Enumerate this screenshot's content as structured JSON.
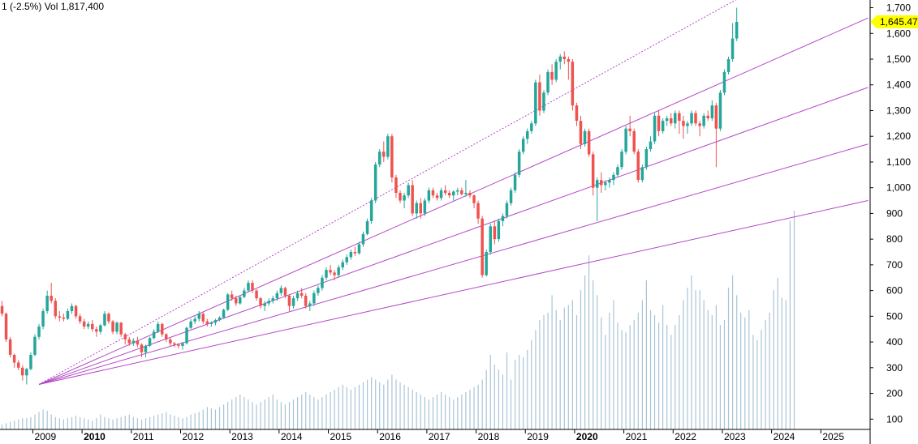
{
  "header": {
    "change_text": "1 (-2.5%)",
    "volume_text": "Vol 1,817,400"
  },
  "colors": {
    "up": "#26a69a",
    "down": "#ef5350",
    "volume": "#a9c4d6",
    "fan": "#b347c6",
    "last_price_bg": "#ffff00",
    "axis": "#000000"
  },
  "chart_data": {
    "type": "candlestick",
    "title": "",
    "xlabel": "",
    "ylabel": "",
    "ylim": [
      60,
      1730
    ],
    "y_ticks": [
      100,
      200,
      300,
      400,
      500,
      600,
      700,
      800,
      900,
      1000,
      1100,
      1200,
      1300,
      1400,
      1500,
      1600,
      1700
    ],
    "y_tick_labels": [
      "100",
      "200",
      "300",
      "400",
      "500",
      "600",
      "700",
      "800",
      "900",
      "1,000",
      "1,100",
      "1,200",
      "1,300",
      "1,400",
      "1,500",
      "1,600",
      "1,700"
    ],
    "x_range": [
      "2008-05",
      "2025-12"
    ],
    "years": [
      {
        "label": "2009",
        "bold": false
      },
      {
        "label": "2010",
        "bold": true
      },
      {
        "label": "2011",
        "bold": false
      },
      {
        "label": "2012",
        "bold": false
      },
      {
        "label": "2013",
        "bold": false
      },
      {
        "label": "2014",
        "bold": false
      },
      {
        "label": "2015",
        "bold": false
      },
      {
        "label": "2016",
        "bold": false
      },
      {
        "label": "2017",
        "bold": false
      },
      {
        "label": "2018",
        "bold": false
      },
      {
        "label": "2019",
        "bold": false
      },
      {
        "label": "2020",
        "bold": true
      },
      {
        "label": "2021",
        "bold": false
      },
      {
        "label": "2022",
        "bold": false
      },
      {
        "label": "2023",
        "bold": false
      },
      {
        "label": "2024",
        "bold": false
      },
      {
        "label": "2025",
        "bold": false
      }
    ],
    "last_price": 1645.47,
    "last_price_label": "1,645.47",
    "start_month": "2008-05",
    "candles": [
      [
        540,
        560,
        500,
        510
      ],
      [
        510,
        515,
        400,
        410
      ],
      [
        410,
        420,
        340,
        350
      ],
      [
        350,
        355,
        300,
        320
      ],
      [
        320,
        330,
        290,
        300
      ],
      [
        300,
        310,
        250,
        270
      ],
      [
        270,
        300,
        235,
        295
      ],
      [
        295,
        360,
        290,
        350
      ],
      [
        350,
        430,
        345,
        420
      ],
      [
        420,
        470,
        410,
        460
      ],
      [
        460,
        530,
        450,
        520
      ],
      [
        520,
        600,
        510,
        580
      ],
      [
        580,
        630,
        550,
        560
      ],
      [
        560,
        570,
        490,
        500
      ],
      [
        500,
        520,
        480,
        495
      ],
      [
        495,
        510,
        480,
        490
      ],
      [
        490,
        530,
        485,
        520
      ],
      [
        520,
        550,
        510,
        540
      ],
      [
        540,
        545,
        490,
        500
      ],
      [
        500,
        510,
        470,
        480
      ],
      [
        480,
        490,
        450,
        460
      ],
      [
        460,
        480,
        450,
        470
      ],
      [
        470,
        485,
        440,
        450
      ],
      [
        450,
        460,
        420,
        440
      ],
      [
        440,
        470,
        430,
        465
      ],
      [
        465,
        520,
        460,
        510
      ],
      [
        510,
        515,
        470,
        480
      ],
      [
        480,
        485,
        430,
        440
      ],
      [
        440,
        480,
        430,
        475
      ],
      [
        475,
        478,
        420,
        430
      ],
      [
        430,
        435,
        390,
        410
      ],
      [
        410,
        420,
        385,
        395
      ],
      [
        395,
        415,
        385,
        405
      ],
      [
        405,
        420,
        380,
        390
      ],
      [
        390,
        395,
        340,
        360
      ],
      [
        360,
        390,
        340,
        385
      ],
      [
        385,
        420,
        380,
        415
      ],
      [
        415,
        450,
        410,
        440
      ],
      [
        440,
        480,
        435,
        470
      ],
      [
        470,
        475,
        420,
        430
      ],
      [
        430,
        435,
        400,
        410
      ],
      [
        410,
        415,
        385,
        395
      ],
      [
        395,
        400,
        380,
        390
      ],
      [
        390,
        395,
        375,
        385
      ],
      [
        385,
        400,
        370,
        395
      ],
      [
        395,
        460,
        390,
        455
      ],
      [
        455,
        490,
        450,
        480
      ],
      [
        480,
        500,
        470,
        490
      ],
      [
        490,
        520,
        480,
        510
      ],
      [
        510,
        515,
        470,
        480
      ],
      [
        480,
        490,
        460,
        470
      ],
      [
        470,
        480,
        460,
        475
      ],
      [
        475,
        490,
        465,
        485
      ],
      [
        485,
        500,
        480,
        495
      ],
      [
        495,
        530,
        490,
        525
      ],
      [
        525,
        590,
        520,
        585
      ],
      [
        585,
        600,
        560,
        570
      ],
      [
        570,
        580,
        540,
        550
      ],
      [
        550,
        580,
        545,
        575
      ],
      [
        575,
        610,
        570,
        600
      ],
      [
        600,
        640,
        595,
        630
      ],
      [
        630,
        640,
        590,
        600
      ],
      [
        600,
        605,
        560,
        570
      ],
      [
        570,
        575,
        530,
        540
      ],
      [
        540,
        560,
        520,
        550
      ],
      [
        550,
        570,
        540,
        560
      ],
      [
        560,
        580,
        550,
        570
      ],
      [
        570,
        600,
        560,
        590
      ],
      [
        590,
        620,
        580,
        610
      ],
      [
        610,
        615,
        570,
        580
      ],
      [
        580,
        585,
        520,
        540
      ],
      [
        540,
        580,
        530,
        570
      ],
      [
        570,
        600,
        560,
        590
      ],
      [
        590,
        610,
        570,
        580
      ],
      [
        580,
        590,
        530,
        540
      ],
      [
        540,
        560,
        520,
        550
      ],
      [
        550,
        600,
        540,
        590
      ],
      [
        590,
        620,
        580,
        610
      ],
      [
        610,
        660,
        600,
        650
      ],
      [
        650,
        690,
        640,
        680
      ],
      [
        680,
        700,
        660,
        670
      ],
      [
        670,
        680,
        640,
        660
      ],
      [
        660,
        700,
        650,
        690
      ],
      [
        690,
        720,
        680,
        710
      ],
      [
        710,
        740,
        700,
        730
      ],
      [
        730,
        760,
        720,
        750
      ],
      [
        750,
        770,
        735,
        745
      ],
      [
        745,
        790,
        740,
        780
      ],
      [
        780,
        830,
        770,
        820
      ],
      [
        820,
        880,
        815,
        870
      ],
      [
        870,
        960,
        860,
        950
      ],
      [
        950,
        1100,
        940,
        1090
      ],
      [
        1090,
        1150,
        1080,
        1140
      ],
      [
        1140,
        1180,
        1100,
        1120
      ],
      [
        1120,
        1210,
        1110,
        1200
      ],
      [
        1200,
        1210,
        1020,
        1040
      ],
      [
        1040,
        1050,
        960,
        980
      ],
      [
        980,
        990,
        940,
        950
      ],
      [
        950,
        980,
        920,
        970
      ],
      [
        970,
        1020,
        960,
        1010
      ],
      [
        1010,
        1030,
        890,
        900
      ],
      [
        900,
        950,
        880,
        940
      ],
      [
        940,
        960,
        880,
        900
      ],
      [
        900,
        960,
        890,
        950
      ],
      [
        950,
        1000,
        940,
        990
      ],
      [
        990,
        1000,
        960,
        970
      ],
      [
        970,
        980,
        950,
        960
      ],
      [
        960,
        1000,
        950,
        990
      ],
      [
        990,
        1010,
        970,
        980
      ],
      [
        980,
        990,
        960,
        970
      ],
      [
        970,
        990,
        950,
        985
      ],
      [
        985,
        1000,
        970,
        990
      ],
      [
        990,
        1000,
        970,
        975
      ],
      [
        975,
        1030,
        965,
        980
      ],
      [
        980,
        990,
        960,
        970
      ],
      [
        970,
        975,
        920,
        940
      ],
      [
        940,
        950,
        860,
        880
      ],
      [
        880,
        890,
        650,
        660
      ],
      [
        660,
        760,
        655,
        750
      ],
      [
        750,
        860,
        740,
        850
      ],
      [
        850,
        870,
        780,
        800
      ],
      [
        800,
        880,
        790,
        870
      ],
      [
        870,
        900,
        850,
        890
      ],
      [
        890,
        950,
        880,
        940
      ],
      [
        940,
        1000,
        930,
        990
      ],
      [
        990,
        1060,
        980,
        1050
      ],
      [
        1050,
        1150,
        1040,
        1140
      ],
      [
        1140,
        1200,
        1130,
        1190
      ],
      [
        1190,
        1230,
        1170,
        1220
      ],
      [
        1220,
        1260,
        1210,
        1250
      ],
      [
        1250,
        1420,
        1240,
        1410
      ],
      [
        1410,
        1440,
        1280,
        1300
      ],
      [
        1300,
        1380,
        1290,
        1370
      ],
      [
        1370,
        1460,
        1360,
        1450
      ],
      [
        1450,
        1480,
        1400,
        1420
      ],
      [
        1420,
        1500,
        1410,
        1490
      ],
      [
        1490,
        1520,
        1460,
        1510
      ],
      [
        1510,
        1530,
        1480,
        1500
      ],
      [
        1500,
        1510,
        1420,
        1490
      ],
      [
        1490,
        1500,
        1300,
        1320
      ],
      [
        1320,
        1330,
        1240,
        1260
      ],
      [
        1260,
        1280,
        1150,
        1170
      ],
      [
        1170,
        1230,
        1160,
        1220
      ],
      [
        1220,
        1230,
        1120,
        1130
      ],
      [
        1130,
        1140,
        970,
        1000
      ],
      [
        1000,
        1040,
        870,
        1030
      ],
      [
        1030,
        1060,
        980,
        1010
      ],
      [
        1010,
        1030,
        990,
        1020
      ],
      [
        1020,
        1040,
        1000,
        1030
      ],
      [
        1030,
        1060,
        1010,
        1050
      ],
      [
        1050,
        1090,
        1040,
        1080
      ],
      [
        1080,
        1150,
        1070,
        1140
      ],
      [
        1140,
        1240,
        1130,
        1230
      ],
      [
        1230,
        1280,
        1200,
        1220
      ],
      [
        1220,
        1230,
        1130,
        1140
      ],
      [
        1140,
        1150,
        1020,
        1030
      ],
      [
        1030,
        1090,
        1020,
        1080
      ],
      [
        1080,
        1160,
        1070,
        1150
      ],
      [
        1150,
        1200,
        1140,
        1180
      ],
      [
        1180,
        1290,
        1170,
        1280
      ],
      [
        1280,
        1300,
        1200,
        1220
      ],
      [
        1220,
        1270,
        1210,
        1260
      ],
      [
        1260,
        1280,
        1240,
        1270
      ],
      [
        1270,
        1290,
        1240,
        1250
      ],
      [
        1250,
        1300,
        1230,
        1290
      ],
      [
        1290,
        1300,
        1210,
        1260
      ],
      [
        1260,
        1280,
        1190,
        1240
      ],
      [
        1240,
        1260,
        1210,
        1250
      ],
      [
        1250,
        1300,
        1240,
        1290
      ],
      [
        1290,
        1300,
        1240,
        1250
      ],
      [
        1250,
        1260,
        1200,
        1240
      ],
      [
        1240,
        1290,
        1230,
        1280
      ],
      [
        1280,
        1300,
        1260,
        1270
      ],
      [
        1270,
        1340,
        1260,
        1320
      ],
      [
        1320,
        1330,
        1080,
        1230
      ],
      [
        1230,
        1380,
        1220,
        1370
      ],
      [
        1370,
        1460,
        1360,
        1450
      ],
      [
        1450,
        1510,
        1440,
        1500
      ],
      [
        1500,
        1640,
        1490,
        1580
      ],
      [
        1580,
        1700,
        1570,
        1645
      ]
    ],
    "volumes": [
      20,
      25,
      30,
      35,
      40,
      45,
      45,
      50,
      60,
      70,
      80,
      75,
      60,
      50,
      45,
      40,
      45,
      50,
      55,
      50,
      45,
      40,
      35,
      45,
      60,
      50,
      45,
      40,
      45,
      50,
      55,
      60,
      50,
      45,
      40,
      45,
      50,
      55,
      60,
      65,
      70,
      60,
      55,
      50,
      45,
      50,
      60,
      65,
      70,
      80,
      90,
      85,
      80,
      90,
      100,
      110,
      120,
      130,
      140,
      130,
      120,
      110,
      100,
      110,
      120,
      130,
      140,
      120,
      110,
      100,
      110,
      120,
      130,
      140,
      150,
      140,
      130,
      120,
      130,
      140,
      150,
      160,
      170,
      180,
      170,
      160,
      170,
      180,
      190,
      200,
      210,
      200,
      190,
      180,
      200,
      220,
      200,
      190,
      180,
      170,
      160,
      150,
      140,
      130,
      120,
      130,
      140,
      150,
      140,
      130,
      120,
      130,
      140,
      150,
      160,
      170,
      180,
      200,
      240,
      300,
      260,
      240,
      220,
      310,
      200,
      280,
      300,
      290,
      320,
      360,
      400,
      440,
      460,
      470,
      540,
      480,
      440,
      490,
      500,
      520,
      460,
      560,
      620,
      700,
      600,
      540,
      450,
      380,
      470,
      520,
      430,
      400,
      390,
      420,
      440,
      470,
      520,
      600,
      480,
      460,
      430,
      500,
      420,
      380,
      420,
      460,
      520,
      570,
      620,
      560,
      560,
      520,
      480,
      460,
      500,
      420,
      440,
      570,
      620,
      540,
      470,
      450,
      480,
      380,
      360,
      400,
      440,
      470,
      560,
      610,
      530,
      520,
      840,
      880
    ],
    "fan_lines": [
      {
        "style": "dotted",
        "from": [
          "2009-02",
          235
        ],
        "to": [
          "2023-06",
          1750
        ]
      },
      {
        "style": "solid",
        "from": [
          "2009-02",
          235
        ],
        "to": [
          "2025-12",
          1660
        ]
      },
      {
        "style": "solid",
        "from": [
          "2009-02",
          235
        ],
        "to": [
          "2025-12",
          1390
        ]
      },
      {
        "style": "solid",
        "from": [
          "2009-02",
          235
        ],
        "to": [
          "2025-12",
          1170
        ]
      },
      {
        "style": "solid",
        "from": [
          "2009-02",
          235
        ],
        "to": [
          "2025-12",
          950
        ]
      }
    ]
  }
}
